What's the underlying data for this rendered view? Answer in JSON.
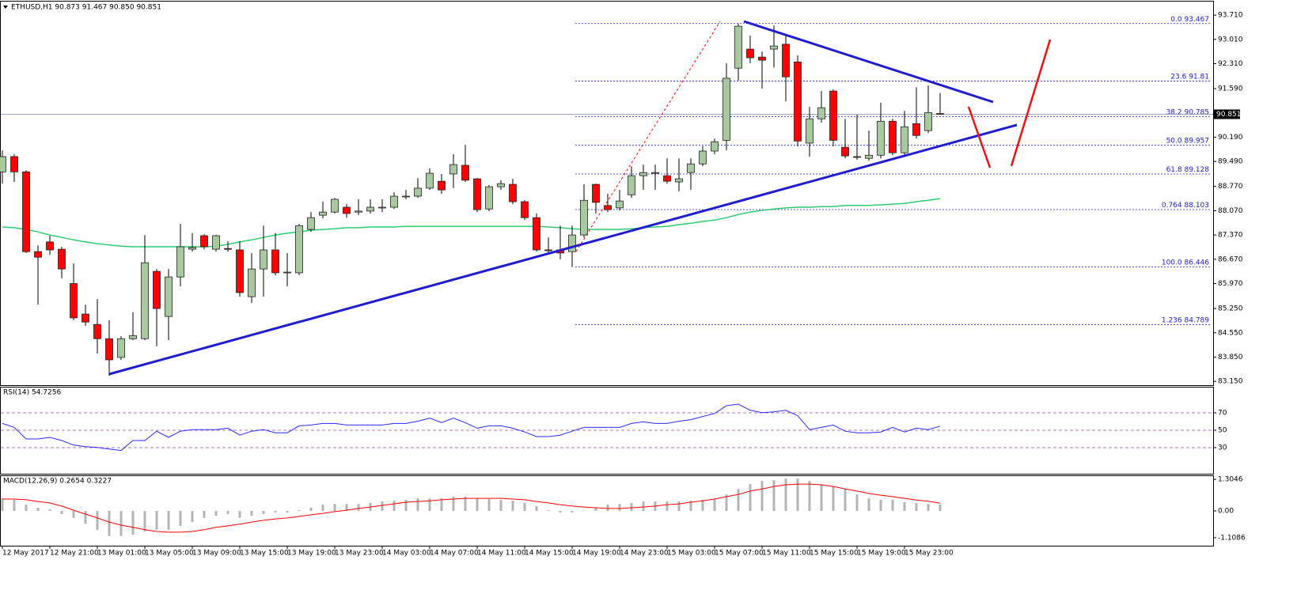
{
  "chart_data": [
    {
      "type": "candlestick",
      "title": "ETHUSD,H1  90.873 91.467 90.850 90.851",
      "categories": [
        "12 May 2017",
        null,
        null,
        null,
        "12 May 21:00",
        null,
        null,
        null,
        "13 May 01:00",
        null,
        null,
        null,
        "13 May 05:00",
        null,
        null,
        null,
        "13 May 09:00",
        null,
        null,
        null,
        "13 May 15:00",
        null,
        null,
        null,
        "13 May 19:00",
        null,
        null,
        null,
        "13 May 23:00",
        null,
        null,
        null,
        "14 May 03:00",
        null,
        null,
        null,
        "14 May 07:00",
        null,
        null,
        null,
        "14 May 11:00",
        null,
        null,
        null,
        "14 May 15:00",
        null,
        null,
        null,
        "14 May 19:00",
        null,
        null,
        null,
        "14 May 23:00",
        null,
        null,
        null,
        "15 May 03:00",
        null,
        null,
        null,
        "15 May 07:00",
        null,
        null,
        null,
        "15 May 11:00",
        null,
        null,
        null,
        "15 May 15:00",
        null,
        null,
        null,
        "15 May 19:00",
        null,
        null,
        null,
        "15 May 23:00",
        null,
        null,
        null
      ],
      "open": [
        89.19,
        89.63,
        89.19,
        86.89,
        87.17,
        86.96,
        85.97,
        85.09,
        84.79,
        84.38,
        83.84,
        84.38,
        84.38,
        86.32,
        85.02,
        86.16,
        86.96,
        87.35,
        86.96,
        86.98,
        86.94,
        85.59,
        86.39,
        86.94,
        86.28,
        86.28,
        87.53,
        87.94,
        88.03,
        88.17,
        88.03,
        88.06,
        88.15,
        88.17,
        88.47,
        88.49,
        88.72,
        88.92,
        89.13,
        89.38,
        88.99,
        88.12,
        88.76,
        88.83,
        88.33,
        87.87,
        86.94,
        86.94,
        86.89,
        87.37,
        88.83,
        88.22,
        88.15,
        88.53,
        89.08,
        89.15,
        89.08,
        88.9,
        89.17,
        89.42,
        89.79,
        90.1,
        92.18,
        92.73,
        92.5,
        92.73,
        92.87,
        92.36,
        90.02,
        90.72,
        91.52,
        89.9,
        89.63,
        89.58,
        89.67,
        90.65,
        89.74,
        90.58,
        90.38,
        90.873
      ],
      "high": [
        89.81,
        89.7,
        89.24,
        87.07,
        87.35,
        87.03,
        86.55,
        85.36,
        85.52,
        84.91,
        84.45,
        85.14,
        87.37,
        86.39,
        86.39,
        87.69,
        87.42,
        87.39,
        87.37,
        87.19,
        87.19,
        86.85,
        87.64,
        87.42,
        86.85,
        87.69,
        88.03,
        88.33,
        88.44,
        88.26,
        88.4,
        88.4,
        88.4,
        88.6,
        88.67,
        89.01,
        89.29,
        89.13,
        89.7,
        89.97,
        89.01,
        88.81,
        88.95,
        88.99,
        88.37,
        87.99,
        87.3,
        87.64,
        87.64,
        88.83,
        88.85,
        88.56,
        88.67,
        89.35,
        89.4,
        89.4,
        89.58,
        89.58,
        89.58,
        89.93,
        90.15,
        92.32,
        93.467,
        93.12,
        92.66,
        93.41,
        93.12,
        92.55,
        91.06,
        91.52,
        91.57,
        90.72,
        90.84,
        90.38,
        91.18,
        90.72,
        90.95,
        91.63,
        91.68,
        91.467
      ],
      "low": [
        88.85,
        88.9,
        86.85,
        85.36,
        86.8,
        86.12,
        84.91,
        84.75,
        83.95,
        83.31,
        83.77,
        84.34,
        84.34,
        84.16,
        84.34,
        85.89,
        86.89,
        86.96,
        86.89,
        86.89,
        85.59,
        85.41,
        85.59,
        86.21,
        85.89,
        86.21,
        87.46,
        87.85,
        87.99,
        87.87,
        87.94,
        87.99,
        88.03,
        88.12,
        88.4,
        88.44,
        88.67,
        88.56,
        88.72,
        88.9,
        88.03,
        88.06,
        88.67,
        88.26,
        87.8,
        86.89,
        86.85,
        86.67,
        86.446,
        87.3,
        87.99,
        88.03,
        88.08,
        88.44,
        88.67,
        88.67,
        88.85,
        88.63,
        88.67,
        89.35,
        89.7,
        89.81,
        91.82,
        92.32,
        91.59,
        92.2,
        91.22,
        89.93,
        89.63,
        90.61,
        89.93,
        89.58,
        89.54,
        89.51,
        89.58,
        89.67,
        89.67,
        90.15,
        90.31,
        90.85
      ],
      "close": [
        89.63,
        89.19,
        86.89,
        86.73,
        86.94,
        86.39,
        84.98,
        84.86,
        84.38,
        83.77,
        84.38,
        84.47,
        86.57,
        85.25,
        86.16,
        87.03,
        87.01,
        87.03,
        87.35,
        86.96,
        85.71,
        86.39,
        86.94,
        86.28,
        86.3,
        87.64,
        87.87,
        88.03,
        88.4,
        87.99,
        88.06,
        88.17,
        88.17,
        88.49,
        88.49,
        88.72,
        89.15,
        88.67,
        89.4,
        88.95,
        88.1,
        88.76,
        88.85,
        88.33,
        87.87,
        86.94,
        86.92,
        86.85,
        87.37,
        88.37,
        88.31,
        88.1,
        88.35,
        89.08,
        89.17,
        89.17,
        88.92,
        88.99,
        89.42,
        89.79,
        90.06,
        91.89,
        93.39,
        92.48,
        92.41,
        92.82,
        91.93,
        90.08,
        90.72,
        91.04,
        90.1,
        89.65,
        89.61,
        89.67,
        90.65,
        89.74,
        90.49,
        90.24,
        90.9,
        90.851
      ],
      "up_color": "#a8c8a0",
      "down_color": "#ff0000",
      "ma": {
        "color": "#2ecc71",
        "values": [
          87.6,
          87.58,
          87.53,
          87.46,
          87.37,
          87.3,
          87.23,
          87.17,
          87.12,
          87.08,
          87.05,
          87.03,
          87.03,
          87.03,
          87.03,
          87.03,
          87.03,
          87.03,
          87.05,
          87.1,
          87.17,
          87.23,
          87.3,
          87.37,
          87.42,
          87.46,
          87.51,
          87.53,
          87.55,
          87.58,
          87.58,
          87.6,
          87.6,
          87.6,
          87.62,
          87.62,
          87.62,
          87.62,
          87.62,
          87.62,
          87.62,
          87.62,
          87.62,
          87.62,
          87.62,
          87.62,
          87.6,
          87.58,
          87.55,
          87.53,
          87.53,
          87.53,
          87.53,
          87.55,
          87.58,
          87.6,
          87.62,
          87.67,
          87.71,
          87.76,
          87.8,
          87.87,
          87.96,
          88.03,
          88.08,
          88.12,
          88.15,
          88.17,
          88.17,
          88.19,
          88.19,
          88.22,
          88.22,
          88.22,
          88.24,
          88.26,
          88.28,
          88.33,
          88.37,
          88.42
        ]
      },
      "fib_levels": [
        {
          "level": "0.0",
          "price": 93.467
        },
        {
          "level": "23.6",
          "price": 91.81
        },
        {
          "level": "38.2",
          "price": 90.785
        },
        {
          "level": "50.0",
          "price": 89.957
        },
        {
          "level": "61.8",
          "price": 89.128
        },
        {
          "level": "0.764",
          "price": 88.103
        },
        {
          "level": "100.0",
          "price": 86.446
        },
        {
          "level": "1.236",
          "price": 84.789
        }
      ],
      "last_price": 90.851,
      "ylim": [
        83.04,
        94.1
      ],
      "yticks": [
        {
          "value": 93.71,
          "label": "93.710"
        },
        {
          "value": 93.01,
          "label": "93.010"
        },
        {
          "value": 92.31,
          "label": "92.310"
        },
        {
          "value": 91.59,
          "label": "91.590"
        },
        {
          "value": 90.19,
          "label": "90.190"
        },
        {
          "value": 89.49,
          "label": "89.490"
        },
        {
          "value": 88.77,
          "label": "88.770"
        },
        {
          "value": 88.07,
          "label": "88.070"
        },
        {
          "value": 87.37,
          "label": "87.370"
        },
        {
          "value": 86.67,
          "label": "86.670"
        },
        {
          "value": 85.97,
          "label": "85.970"
        },
        {
          "value": 85.25,
          "label": "85.250"
        },
        {
          "value": 84.55,
          "label": "84.550"
        },
        {
          "value": 83.85,
          "label": "83.850"
        },
        {
          "value": 83.15,
          "label": "83.150"
        }
      ]
    },
    {
      "type": "line",
      "title": "RSI(14) 54.7256",
      "color": "#2a2aff",
      "values": [
        57.8,
        53.3,
        40.0,
        40.0,
        41.8,
        38.2,
        32.9,
        31.1,
        30.2,
        28.4,
        26.7,
        38.2,
        38.2,
        48.9,
        41.8,
        48.9,
        50.7,
        50.7,
        50.7,
        52.4,
        44.4,
        48.9,
        50.7,
        47.1,
        47.1,
        55.1,
        56.0,
        57.8,
        57.8,
        56.0,
        56.0,
        56.0,
        56.0,
        57.8,
        57.8,
        60.4,
        64.0,
        58.7,
        64.0,
        58.7,
        52.4,
        55.1,
        55.1,
        52.4,
        48.0,
        42.7,
        42.7,
        44.4,
        48.9,
        53.3,
        53.3,
        53.3,
        53.3,
        57.8,
        59.6,
        57.8,
        57.8,
        60.4,
        62.2,
        65.8,
        69.3,
        78.2,
        80.0,
        72.9,
        70.2,
        71.1,
        72.9,
        66.7,
        50.7,
        53.3,
        56.0,
        48.9,
        47.1,
        47.1,
        48.0,
        53.3,
        48.0,
        52.4,
        50.7,
        54.7
      ],
      "ylim": [
        0,
        100
      ],
      "yticks": [
        70,
        50,
        30
      ],
      "grid": true
    },
    {
      "type": "macd",
      "title": "MACD(12,26,9) 0.2654 0.3227",
      "histogram": {
        "color": "#b4b4b4",
        "values": [
          0.52,
          0.46,
          0.26,
          0.13,
          0.07,
          -0.13,
          -0.29,
          -0.52,
          -0.78,
          -1.04,
          -1.04,
          -0.98,
          -0.85,
          -0.78,
          -0.78,
          -0.62,
          -0.46,
          -0.29,
          -0.2,
          -0.13,
          -0.29,
          -0.2,
          -0.13,
          -0.07,
          -0.07,
          0.03,
          0.13,
          0.26,
          0.29,
          0.29,
          0.29,
          0.33,
          0.39,
          0.42,
          0.46,
          0.52,
          0.52,
          0.52,
          0.59,
          0.59,
          0.52,
          0.49,
          0.46,
          0.42,
          0.33,
          0.2,
          0.03,
          -0.07,
          -0.07,
          0.01,
          0.13,
          0.26,
          0.29,
          0.33,
          0.39,
          0.39,
          0.39,
          0.39,
          0.42,
          0.46,
          0.52,
          0.68,
          0.91,
          1.11,
          1.24,
          1.27,
          1.34,
          1.34,
          1.24,
          1.11,
          1.01,
          0.91,
          0.68,
          0.52,
          0.46,
          0.46,
          0.36,
          0.33,
          0.29,
          0.27
        ]
      },
      "signal": {
        "color": "#ff0000",
        "values": [
          0.49,
          0.49,
          0.46,
          0.39,
          0.33,
          0.2,
          0.03,
          -0.13,
          -0.29,
          -0.46,
          -0.59,
          -0.68,
          -0.78,
          -0.85,
          -0.88,
          -0.88,
          -0.85,
          -0.78,
          -0.68,
          -0.62,
          -0.55,
          -0.46,
          -0.39,
          -0.33,
          -0.29,
          -0.23,
          -0.16,
          -0.1,
          -0.03,
          0.03,
          0.1,
          0.16,
          0.23,
          0.29,
          0.36,
          0.39,
          0.42,
          0.46,
          0.49,
          0.52,
          0.52,
          0.52,
          0.52,
          0.49,
          0.46,
          0.39,
          0.33,
          0.26,
          0.2,
          0.16,
          0.13,
          0.1,
          0.1,
          0.13,
          0.16,
          0.2,
          0.26,
          0.29,
          0.36,
          0.42,
          0.49,
          0.59,
          0.68,
          0.82,
          0.91,
          1.01,
          1.08,
          1.11,
          1.11,
          1.08,
          1.01,
          0.91,
          0.82,
          0.72,
          0.65,
          0.59,
          0.52,
          0.45,
          0.4,
          0.32
        ]
      },
      "ylim": [
        -1.44,
        1.44
      ],
      "yticks": [
        1.3046,
        {
          "value": 0,
          "label": "0.00"
        },
        -1.1086
      ]
    }
  ]
}
